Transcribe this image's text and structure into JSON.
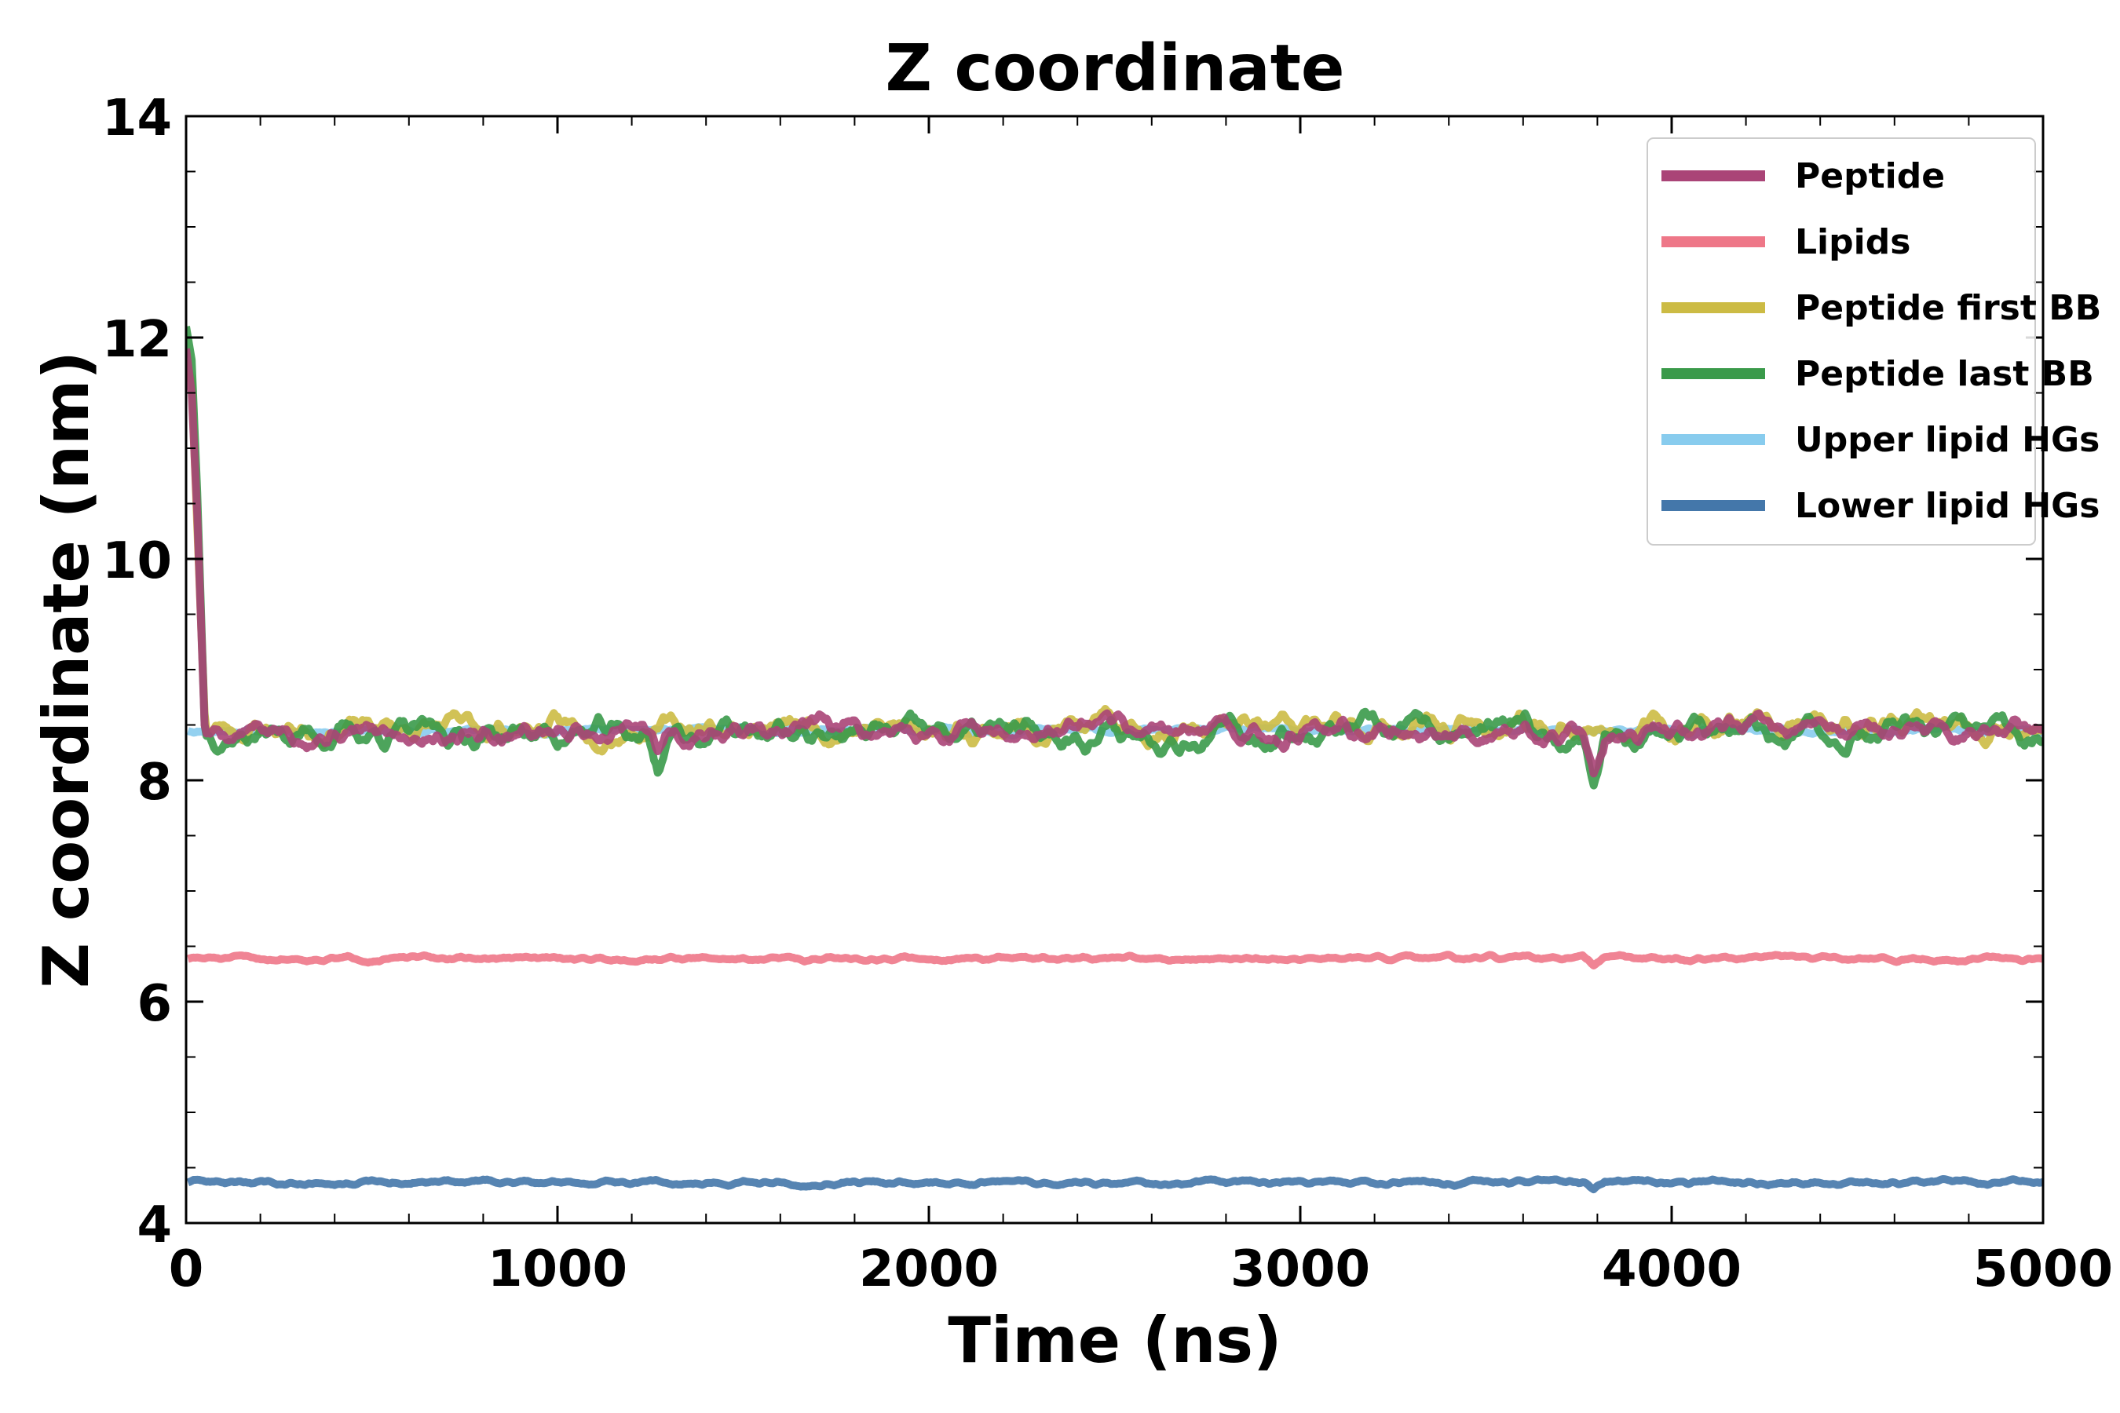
{
  "chart_data": {
    "type": "line",
    "title": "Z coordinate",
    "xlabel": "Time (ns)",
    "ylabel": "Z coordinate (nm)",
    "xlim": [
      0,
      5000
    ],
    "ylim": [
      4,
      14
    ],
    "xticks": [
      0,
      1000,
      2000,
      3000,
      4000,
      5000
    ],
    "yticks": [
      4,
      6,
      8,
      10,
      12,
      14
    ],
    "x_minor_step": 200,
    "y_minor_step": 0.5,
    "grid": false,
    "legend_position": "top-right",
    "series": [
      {
        "name": "Upper lipid HGs",
        "color": "#88CCEE",
        "base": 8.45,
        "noise": 0.03,
        "seed": 11,
        "initial": null,
        "dips": []
      },
      {
        "name": "Peptide first BB",
        "color": "#CCBB44",
        "base": 8.47,
        "noise": 0.13,
        "seed": 23,
        "initial": [
          [
            0,
            11.8
          ],
          [
            15,
            11.6
          ],
          [
            30,
            10.3
          ],
          [
            50,
            8.6
          ]
        ],
        "dips": []
      },
      {
        "name": "Peptide last BB",
        "color": "#3A9A4A",
        "base": 8.42,
        "noise": 0.14,
        "seed": 37,
        "initial": [
          [
            0,
            12.1
          ],
          [
            15,
            11.8
          ],
          [
            30,
            10.6
          ],
          [
            50,
            8.5
          ]
        ],
        "dips": [
          [
            1270,
            8.1
          ],
          [
            3790,
            7.95
          ]
        ]
      },
      {
        "name": "Peptide",
        "color": "#AA4477",
        "base": 8.44,
        "noise": 0.12,
        "seed": 5,
        "initial": [
          [
            0,
            11.9
          ],
          [
            15,
            11.5
          ],
          [
            30,
            10.4
          ],
          [
            50,
            8.5
          ]
        ],
        "dips": [
          [
            1270,
            8.25
          ],
          [
            3790,
            8.05
          ]
        ]
      },
      {
        "name": "Lipids",
        "color": "#EE7788",
        "base": 6.39,
        "noise": 0.025,
        "seed": 51,
        "initial": null,
        "dips": [
          [
            3790,
            6.32
          ]
        ]
      },
      {
        "name": "Lower lipid HGs",
        "color": "#4477AA",
        "base": 4.37,
        "noise": 0.025,
        "seed": 63,
        "initial": null,
        "dips": [
          [
            3790,
            4.31
          ]
        ]
      }
    ],
    "legend_order": [
      "Peptide",
      "Lipids",
      "Peptide first BB",
      "Peptide last BB",
      "Upper lipid HGs",
      "Lower lipid HGs"
    ]
  }
}
